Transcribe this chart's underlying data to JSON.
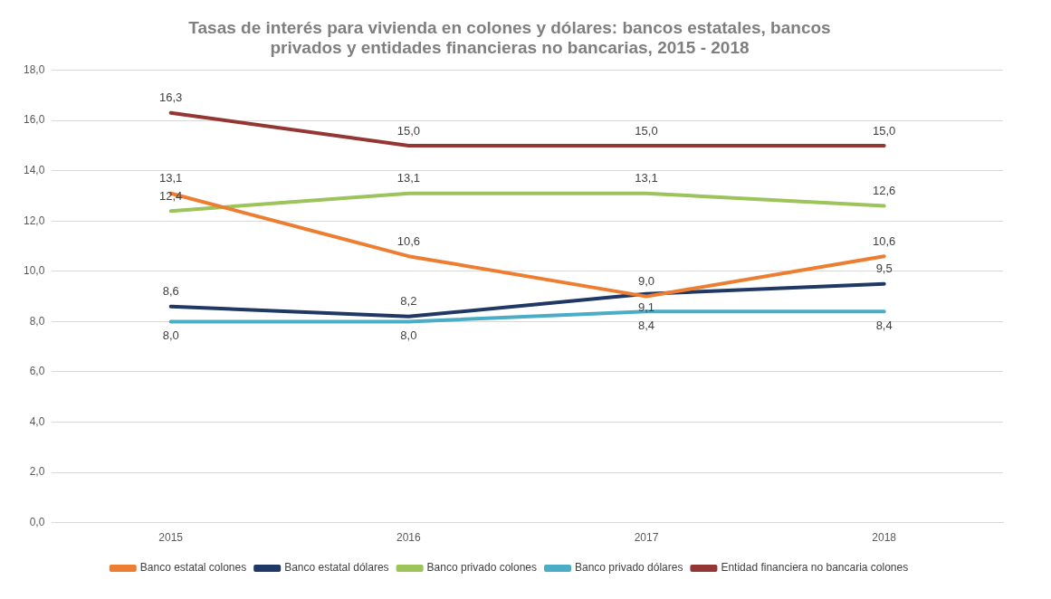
{
  "chart_data": {
    "type": "line",
    "title": "Tasas de interés para vivienda en colones y dólares: bancos estatales, bancos privados y entidades financieras no bancarias, 2015 - 2018",
    "categories": [
      "2015",
      "2016",
      "2017",
      "2018"
    ],
    "series": [
      {
        "name": "Banco estatal colones",
        "color": "#ed7d31",
        "values": [
          13.1,
          10.6,
          9.0,
          10.6
        ],
        "value_labels": [
          "13,1",
          "10,6",
          "9,0",
          "10,6"
        ]
      },
      {
        "name": "Banco estatal dólares",
        "color": "#1f3864",
        "values": [
          8.6,
          8.2,
          9.1,
          9.5
        ],
        "value_labels": [
          "8,6",
          "8,2",
          "9,1",
          "9,5"
        ]
      },
      {
        "name": "Banco privado colones",
        "color": "#9dc35b",
        "values": [
          12.4,
          13.1,
          13.1,
          12.6
        ],
        "value_labels": [
          "12,4",
          "13,1",
          "13,1",
          "12,6"
        ]
      },
      {
        "name": "Banco privado dólares",
        "color": "#4bacc6",
        "values": [
          8.0,
          8.0,
          8.4,
          8.4
        ],
        "value_labels": [
          "8,0",
          "8,0",
          "8,4",
          "8,4"
        ]
      },
      {
        "name": "Entidad financiera no bancaria colones",
        "color": "#943634",
        "values": [
          16.3,
          15.0,
          15.0,
          15.0
        ],
        "value_labels": [
          "16,3",
          "15,0",
          "15,0",
          "15,0"
        ]
      }
    ],
    "ylim": [
      0,
      18
    ],
    "yticks": [
      {
        "value": 0,
        "label": "0,0"
      },
      {
        "value": 2,
        "label": "2,0"
      },
      {
        "value": 4,
        "label": "4,0"
      },
      {
        "value": 6,
        "label": "6,0"
      },
      {
        "value": 8,
        "label": "8,0"
      },
      {
        "value": 10,
        "label": "10,0"
      },
      {
        "value": 12,
        "label": "12,0"
      },
      {
        "value": 14,
        "label": "14,0"
      },
      {
        "value": 16,
        "label": "16,0"
      },
      {
        "value": 18,
        "label": "18,0"
      }
    ],
    "grid": "y",
    "legend": "bottom",
    "marker": "none",
    "line_style": "solid"
  }
}
